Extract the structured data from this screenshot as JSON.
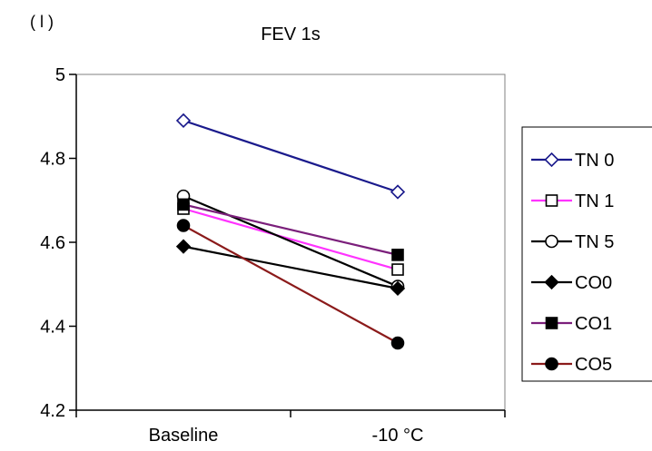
{
  "chart_data": {
    "type": "line",
    "title": "FEV 1s",
    "ylabel": "( l )",
    "categories": [
      "Baseline",
      "-10  °C"
    ],
    "ylim": [
      4.2,
      5.0
    ],
    "yticks": [
      "4.2",
      "4.4",
      "4.6",
      "4.8",
      "5"
    ],
    "grid": false,
    "legend_position": "right",
    "series": [
      {
        "name": "TN 0",
        "values": [
          4.89,
          4.72
        ],
        "color": "#1a1a8c",
        "marker": "diamond-open"
      },
      {
        "name": "TN 1",
        "values": [
          4.68,
          4.535
        ],
        "color": "#ff33ff",
        "marker": "square-open"
      },
      {
        "name": "TN 5",
        "values": [
          4.71,
          4.495
        ],
        "color": "#000000",
        "marker": "circle-open"
      },
      {
        "name": "CO 0",
        "values": [
          4.59,
          4.49
        ],
        "color": "#000000",
        "marker": "diamond-filled"
      },
      {
        "name": "CO 1",
        "values": [
          4.69,
          4.57
        ],
        "color": "#7b1f7b",
        "marker": "square-filled"
      },
      {
        "name": "CO 5",
        "values": [
          4.64,
          4.36
        ],
        "color": "#8b1a1a",
        "marker": "circle-filled"
      }
    ],
    "legend_labels": [
      "TN 0",
      "TN 1",
      "TN 5",
      "CO0",
      "CO1",
      "CO5"
    ]
  }
}
